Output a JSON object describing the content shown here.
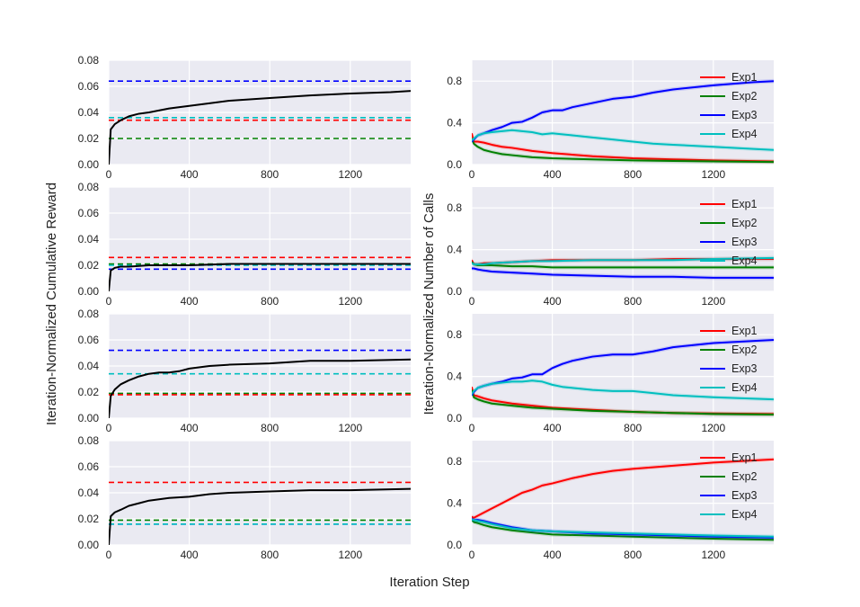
{
  "figure": {
    "xlabel": "Iteration Step",
    "ylabel_left": "Iteration-Normalized Cumulative Reward",
    "ylabel_right": "Iteration-Normalized Number of Calls",
    "background_color": "#eaeaf2",
    "grid": true,
    "series_colors": {
      "Exp1": "#ff0000",
      "Exp2": "#008000",
      "Exp3": "#0000ff",
      "Exp4": "#00bfbf",
      "cumulative": "#000000"
    }
  },
  "chart_data": [
    {
      "type": "line",
      "panel": "left-1",
      "grid": true,
      "xlim": [
        0,
        1500
      ],
      "ylim": [
        0,
        0.08
      ],
      "x_ticks": [
        "0",
        "400",
        "800",
        "1200"
      ],
      "y_ticks": [
        "0.00",
        "0.02",
        "0.04",
        "0.06",
        "0.08"
      ],
      "reference_lines": [
        {
          "color": "#0000ff",
          "y": 0.064
        },
        {
          "color": "#00bfbf",
          "y": 0.036
        },
        {
          "color": "#ff0000",
          "y": 0.034
        },
        {
          "color": "#008000",
          "y": 0.02
        }
      ],
      "series": [
        {
          "color": "#000000",
          "x": [
            0,
            10,
            30,
            60,
            100,
            150,
            200,
            300,
            400,
            500,
            600,
            800,
            1000,
            1200,
            1400,
            1500
          ],
          "y": [
            0,
            0.027,
            0.031,
            0.034,
            0.037,
            0.039,
            0.04,
            0.043,
            0.045,
            0.047,
            0.049,
            0.051,
            0.053,
            0.0545,
            0.0555,
            0.0565
          ]
        }
      ]
    },
    {
      "type": "line",
      "panel": "right-1",
      "grid": true,
      "xlim": [
        0,
        1500
      ],
      "ylim": [
        0,
        1.0
      ],
      "x_ticks": [
        "0",
        "400",
        "800",
        "1200"
      ],
      "y_ticks": [
        "0.0",
        "0.4",
        "0.8"
      ],
      "legend": [
        "Exp1",
        "Exp2",
        "Exp3",
        "Exp4"
      ],
      "legend_position": "top-right",
      "series": [
        {
          "name": "Exp1",
          "color": "#ff0000",
          "x": [
            0,
            10,
            30,
            60,
            100,
            150,
            200,
            300,
            400,
            600,
            800,
            1000,
            1200,
            1500
          ],
          "y": [
            0.3,
            0.22,
            0.22,
            0.21,
            0.19,
            0.17,
            0.16,
            0.13,
            0.11,
            0.08,
            0.06,
            0.05,
            0.04,
            0.03
          ]
        },
        {
          "name": "Exp2",
          "color": "#008000",
          "x": [
            0,
            10,
            30,
            60,
            100,
            150,
            200,
            300,
            400,
            600,
            800,
            1000,
            1200,
            1500
          ],
          "y": [
            0.25,
            0.2,
            0.17,
            0.14,
            0.12,
            0.1,
            0.09,
            0.07,
            0.06,
            0.05,
            0.04,
            0.035,
            0.03,
            0.025
          ]
        },
        {
          "name": "Exp3",
          "color": "#0000ff",
          "x": [
            0,
            10,
            30,
            60,
            100,
            150,
            200,
            250,
            300,
            350,
            400,
            450,
            500,
            600,
            700,
            800,
            900,
            1000,
            1200,
            1400,
            1500
          ],
          "y": [
            0.22,
            0.24,
            0.28,
            0.3,
            0.33,
            0.36,
            0.4,
            0.41,
            0.45,
            0.5,
            0.52,
            0.52,
            0.55,
            0.59,
            0.63,
            0.65,
            0.69,
            0.72,
            0.76,
            0.79,
            0.8
          ]
        },
        {
          "name": "Exp4",
          "color": "#00bfbf",
          "x": [
            0,
            10,
            30,
            60,
            100,
            150,
            200,
            250,
            300,
            350,
            400,
            450,
            500,
            600,
            700,
            800,
            900,
            1000,
            1200,
            1400,
            1500
          ],
          "y": [
            0.23,
            0.25,
            0.28,
            0.3,
            0.31,
            0.32,
            0.33,
            0.32,
            0.31,
            0.29,
            0.3,
            0.29,
            0.28,
            0.26,
            0.24,
            0.22,
            0.2,
            0.19,
            0.17,
            0.15,
            0.14
          ]
        }
      ]
    },
    {
      "type": "line",
      "panel": "left-2",
      "grid": true,
      "xlim": [
        0,
        1500
      ],
      "ylim": [
        0,
        0.08
      ],
      "x_ticks": [
        "0",
        "400",
        "800",
        "1200"
      ],
      "y_ticks": [
        "0.00",
        "0.02",
        "0.04",
        "0.06",
        "0.08"
      ],
      "reference_lines": [
        {
          "color": "#ff0000",
          "y": 0.026
        },
        {
          "color": "#008000",
          "y": 0.021
        },
        {
          "color": "#00bfbf",
          "y": 0.02
        },
        {
          "color": "#0000ff",
          "y": 0.017
        }
      ],
      "series": [
        {
          "color": "#000000",
          "x": [
            0,
            10,
            30,
            60,
            100,
            200,
            400,
            600,
            800,
            1000,
            1200,
            1500
          ],
          "y": [
            0,
            0.016,
            0.018,
            0.019,
            0.019,
            0.02,
            0.02,
            0.021,
            0.021,
            0.021,
            0.021,
            0.021
          ]
        }
      ]
    },
    {
      "type": "line",
      "panel": "right-2",
      "grid": true,
      "xlim": [
        0,
        1500
      ],
      "ylim": [
        0,
        1.0
      ],
      "x_ticks": [
        "0",
        "400",
        "800",
        "1200"
      ],
      "y_ticks": [
        "0.0",
        "0.4",
        "0.8"
      ],
      "legend": [
        "Exp1",
        "Exp2",
        "Exp3",
        "Exp4"
      ],
      "legend_position": "top-right",
      "series": [
        {
          "name": "Exp1",
          "color": "#ff0000",
          "x": [
            0,
            10,
            30,
            60,
            100,
            200,
            300,
            400,
            600,
            800,
            1000,
            1200,
            1500
          ],
          "y": [
            0.3,
            0.26,
            0.26,
            0.27,
            0.27,
            0.28,
            0.29,
            0.3,
            0.3,
            0.3,
            0.31,
            0.31,
            0.31
          ]
        },
        {
          "name": "Exp2",
          "color": "#008000",
          "x": [
            0,
            10,
            30,
            60,
            100,
            200,
            300,
            400,
            600,
            800,
            1000,
            1200,
            1500
          ],
          "y": [
            0.28,
            0.26,
            0.25,
            0.25,
            0.25,
            0.24,
            0.24,
            0.23,
            0.23,
            0.23,
            0.23,
            0.23,
            0.23
          ]
        },
        {
          "name": "Exp3",
          "color": "#0000ff",
          "x": [
            0,
            10,
            30,
            60,
            100,
            200,
            300,
            400,
            600,
            800,
            1000,
            1200,
            1500
          ],
          "y": [
            0.22,
            0.22,
            0.21,
            0.2,
            0.19,
            0.18,
            0.17,
            0.16,
            0.15,
            0.14,
            0.14,
            0.13,
            0.13
          ]
        },
        {
          "name": "Exp4",
          "color": "#00bfbf",
          "x": [
            0,
            10,
            30,
            60,
            100,
            200,
            300,
            400,
            600,
            800,
            1000,
            1200,
            1500
          ],
          "y": [
            0.27,
            0.26,
            0.26,
            0.26,
            0.27,
            0.28,
            0.29,
            0.29,
            0.3,
            0.3,
            0.3,
            0.31,
            0.32
          ]
        }
      ]
    },
    {
      "type": "line",
      "panel": "left-3",
      "grid": true,
      "xlim": [
        0,
        1500
      ],
      "ylim": [
        0,
        0.08
      ],
      "x_ticks": [
        "0",
        "400",
        "800",
        "1200"
      ],
      "y_ticks": [
        "0.00",
        "0.02",
        "0.04",
        "0.06",
        "0.08"
      ],
      "reference_lines": [
        {
          "color": "#0000ff",
          "y": 0.052
        },
        {
          "color": "#00bfbf",
          "y": 0.034
        },
        {
          "color": "#008000",
          "y": 0.019
        },
        {
          "color": "#ff0000",
          "y": 0.018
        }
      ],
      "series": [
        {
          "color": "#000000",
          "x": [
            0,
            10,
            30,
            60,
            100,
            150,
            200,
            250,
            300,
            350,
            400,
            500,
            600,
            800,
            1000,
            1200,
            1500
          ],
          "y": [
            0,
            0.017,
            0.022,
            0.026,
            0.029,
            0.032,
            0.034,
            0.035,
            0.035,
            0.036,
            0.038,
            0.04,
            0.041,
            0.042,
            0.044,
            0.044,
            0.045
          ]
        }
      ]
    },
    {
      "type": "line",
      "panel": "right-3",
      "grid": true,
      "xlim": [
        0,
        1500
      ],
      "ylim": [
        0,
        1.0
      ],
      "x_ticks": [
        "0",
        "400",
        "800",
        "1200"
      ],
      "y_ticks": [
        "0.0",
        "0.4",
        "0.8"
      ],
      "legend": [
        "Exp1",
        "Exp2",
        "Exp3",
        "Exp4"
      ],
      "legend_position": "top-right",
      "series": [
        {
          "name": "Exp1",
          "color": "#ff0000",
          "x": [
            0,
            10,
            30,
            60,
            100,
            200,
            300,
            400,
            600,
            800,
            1000,
            1200,
            1500
          ],
          "y": [
            0.3,
            0.22,
            0.21,
            0.19,
            0.17,
            0.14,
            0.12,
            0.1,
            0.08,
            0.06,
            0.05,
            0.045,
            0.04
          ]
        },
        {
          "name": "Exp2",
          "color": "#008000",
          "x": [
            0,
            10,
            30,
            60,
            100,
            200,
            300,
            400,
            600,
            800,
            1000,
            1200,
            1500
          ],
          "y": [
            0.27,
            0.2,
            0.18,
            0.16,
            0.14,
            0.12,
            0.1,
            0.09,
            0.07,
            0.06,
            0.05,
            0.04,
            0.035
          ]
        },
        {
          "name": "Exp3",
          "color": "#0000ff",
          "x": [
            0,
            10,
            30,
            60,
            100,
            150,
            200,
            250,
            300,
            350,
            400,
            450,
            500,
            600,
            700,
            800,
            900,
            1000,
            1200,
            1500
          ],
          "y": [
            0.22,
            0.25,
            0.29,
            0.31,
            0.33,
            0.35,
            0.38,
            0.39,
            0.42,
            0.42,
            0.48,
            0.52,
            0.55,
            0.59,
            0.61,
            0.61,
            0.64,
            0.68,
            0.72,
            0.75
          ]
        },
        {
          "name": "Exp4",
          "color": "#00bfbf",
          "x": [
            0,
            10,
            30,
            60,
            100,
            150,
            200,
            250,
            300,
            350,
            400,
            450,
            500,
            600,
            700,
            800,
            900,
            1000,
            1200,
            1500
          ],
          "y": [
            0.23,
            0.26,
            0.29,
            0.31,
            0.33,
            0.34,
            0.35,
            0.35,
            0.36,
            0.35,
            0.32,
            0.3,
            0.29,
            0.27,
            0.26,
            0.26,
            0.24,
            0.22,
            0.2,
            0.18
          ]
        }
      ]
    },
    {
      "type": "line",
      "panel": "left-4",
      "grid": true,
      "xlim": [
        0,
        1500
      ],
      "ylim": [
        0,
        0.08
      ],
      "x_ticks": [
        "0",
        "400",
        "800",
        "1200"
      ],
      "y_ticks": [
        "0.00",
        "0.02",
        "0.04",
        "0.06",
        "0.08"
      ],
      "reference_lines": [
        {
          "color": "#ff0000",
          "y": 0.048
        },
        {
          "color": "#008000",
          "y": 0.019
        },
        {
          "color": "#0000ff",
          "y": 0.016
        },
        {
          "color": "#00bfbf",
          "y": 0.016
        }
      ],
      "series": [
        {
          "color": "#000000",
          "x": [
            0,
            10,
            30,
            60,
            100,
            150,
            200,
            300,
            400,
            500,
            600,
            800,
            1000,
            1200,
            1500
          ],
          "y": [
            0,
            0.022,
            0.025,
            0.027,
            0.03,
            0.032,
            0.034,
            0.036,
            0.037,
            0.039,
            0.04,
            0.041,
            0.042,
            0.042,
            0.043
          ]
        }
      ]
    },
    {
      "type": "line",
      "panel": "right-4",
      "grid": true,
      "xlim": [
        0,
        1500
      ],
      "ylim": [
        0,
        1.0
      ],
      "x_ticks": [
        "0",
        "400",
        "800",
        "1200"
      ],
      "y_ticks": [
        "0.0",
        "0.4",
        "0.8"
      ],
      "legend": [
        "Exp1",
        "Exp2",
        "Exp3",
        "Exp4"
      ],
      "legend_position": "top-right",
      "series": [
        {
          "name": "Exp1",
          "color": "#ff0000",
          "x": [
            0,
            10,
            30,
            60,
            100,
            150,
            200,
            250,
            300,
            350,
            400,
            500,
            600,
            700,
            800,
            1000,
            1200,
            1500
          ],
          "y": [
            0.27,
            0.26,
            0.28,
            0.31,
            0.35,
            0.4,
            0.45,
            0.5,
            0.53,
            0.57,
            0.59,
            0.64,
            0.68,
            0.71,
            0.73,
            0.76,
            0.79,
            0.82
          ]
        },
        {
          "name": "Exp2",
          "color": "#008000",
          "x": [
            0,
            10,
            30,
            60,
            100,
            200,
            300,
            400,
            600,
            800,
            1000,
            1200,
            1500
          ],
          "y": [
            0.24,
            0.22,
            0.21,
            0.19,
            0.17,
            0.14,
            0.12,
            0.1,
            0.09,
            0.08,
            0.07,
            0.06,
            0.05
          ]
        },
        {
          "name": "Exp3",
          "color": "#0000ff",
          "x": [
            0,
            10,
            30,
            60,
            100,
            200,
            300,
            400,
            600,
            800,
            1000,
            1200,
            1500
          ],
          "y": [
            0.25,
            0.24,
            0.24,
            0.23,
            0.21,
            0.17,
            0.14,
            0.13,
            0.11,
            0.1,
            0.09,
            0.08,
            0.07
          ]
        },
        {
          "name": "Exp4",
          "color": "#00bfbf",
          "x": [
            0,
            10,
            30,
            60,
            100,
            200,
            300,
            400,
            600,
            800,
            1000,
            1200,
            1500
          ],
          "y": [
            0.24,
            0.24,
            0.23,
            0.22,
            0.2,
            0.16,
            0.14,
            0.13,
            0.12,
            0.11,
            0.1,
            0.09,
            0.08
          ]
        }
      ]
    }
  ]
}
